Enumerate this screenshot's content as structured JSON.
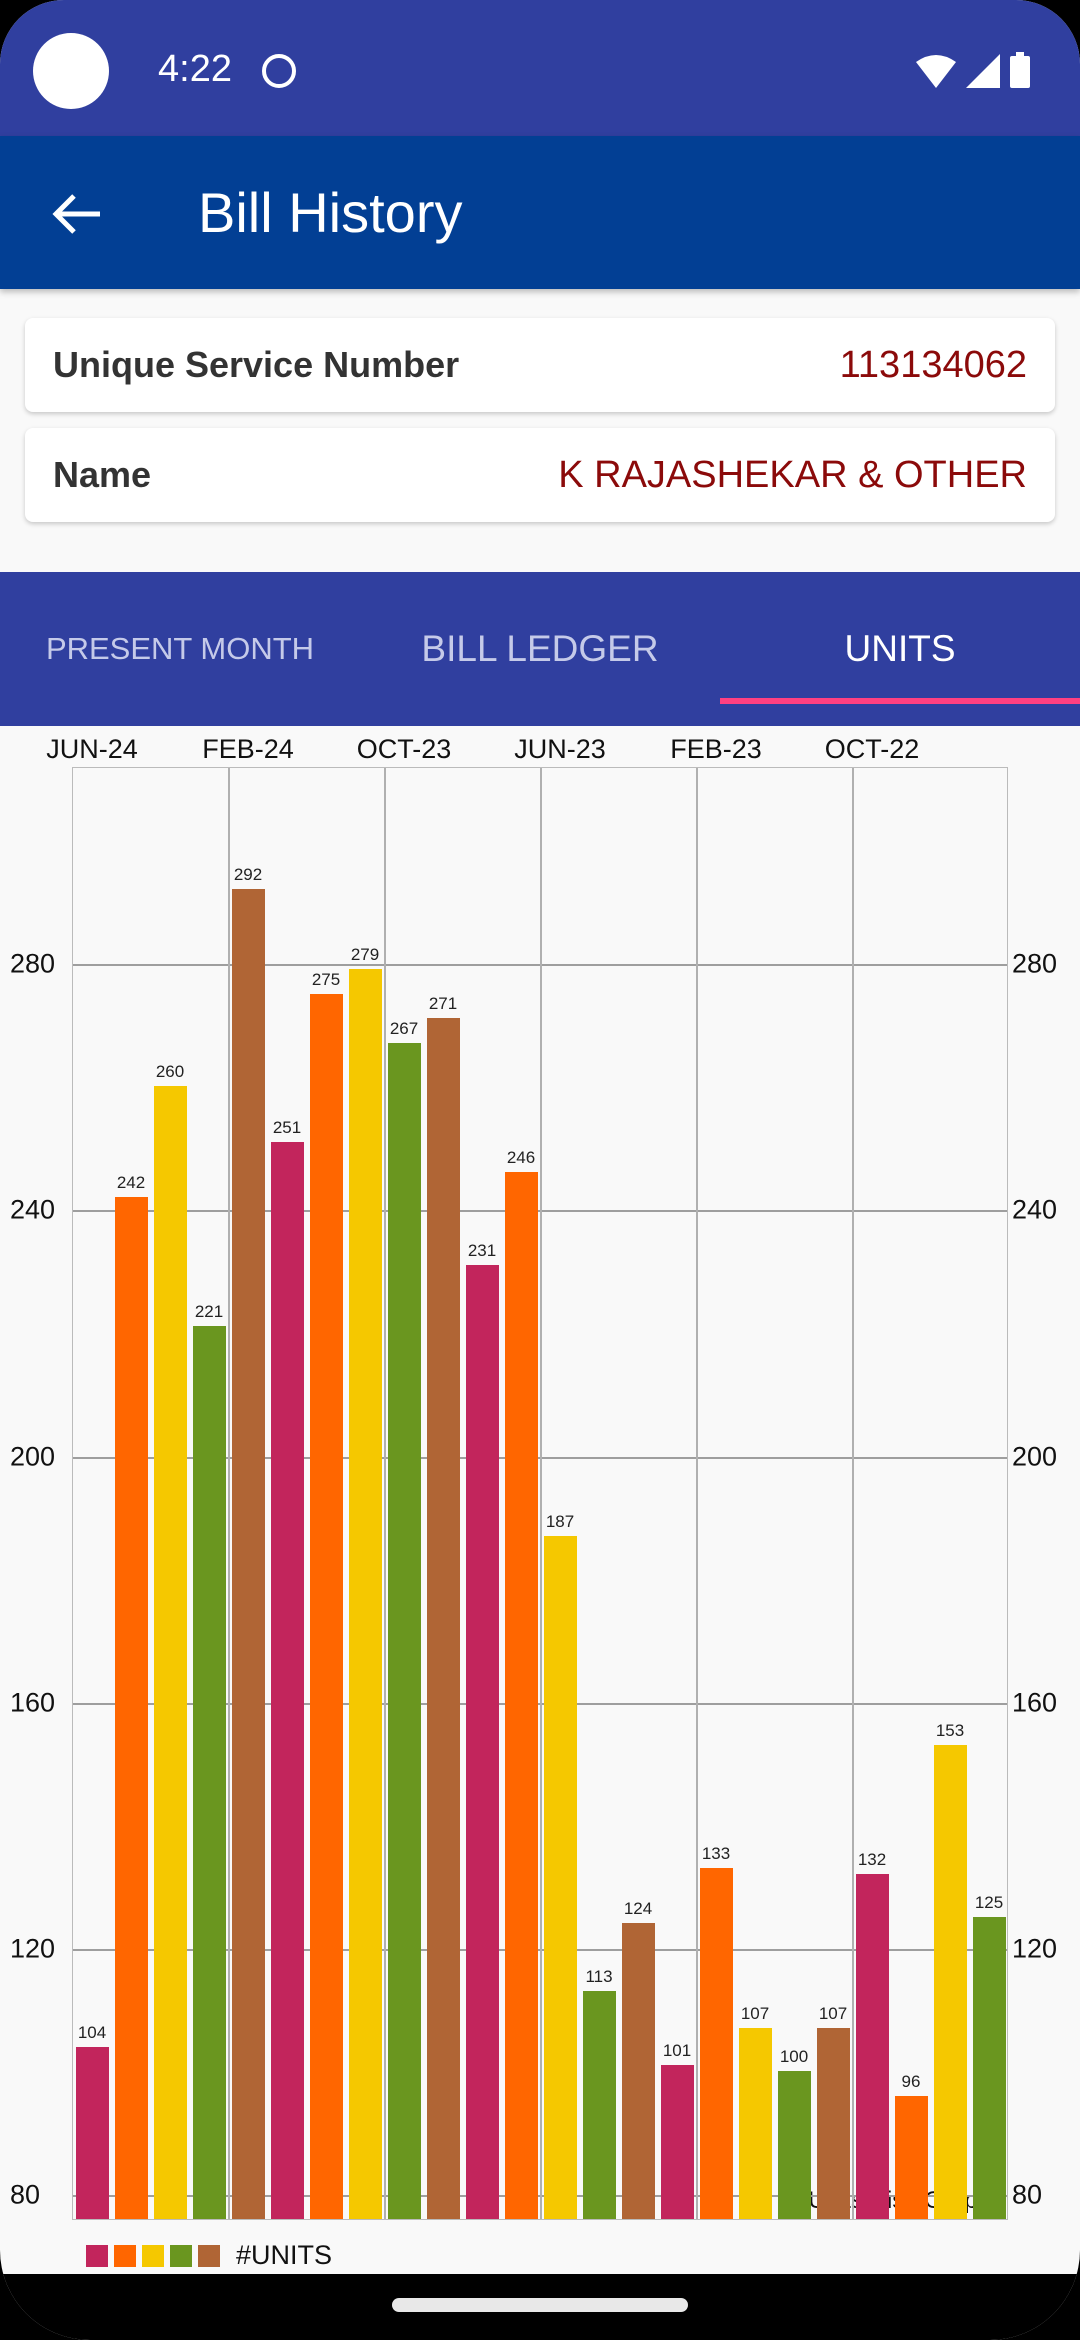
{
  "status_bar": {
    "time": "4:22"
  },
  "app_bar": {
    "title": "Bill History"
  },
  "info": {
    "service_label": "Unique Service Number",
    "service_value": "113134062",
    "name_label": "Name",
    "name_value": "K RAJASHEKAR & OTHER"
  },
  "tabs": [
    {
      "label": "PRESENT MONTH",
      "active": false
    },
    {
      "label": "BILL LEDGER",
      "active": false
    },
    {
      "label": "UNITS",
      "active": true
    }
  ],
  "colors": {
    "status_bar": "#303f9f",
    "app_bar": "#023f94",
    "tab_indicator": "#ff4081",
    "value_text": "#8b0a0a",
    "palette": [
      "#c2255c",
      "#ff6600",
      "#f5c800",
      "#6a961f",
      "#b06535"
    ]
  },
  "chart_data": {
    "type": "bar",
    "title": "Units wise Graph",
    "legend": [
      "#UNITS"
    ],
    "legend_position": "bottom-left",
    "x_tick_labels": [
      "JUN-24",
      "FEB-24",
      "OCT-23",
      "JUN-23",
      "FEB-23",
      "OCT-22"
    ],
    "y_ticks": [
      80,
      120,
      160,
      200,
      240,
      280
    ],
    "ylim": [
      76,
      312
    ],
    "grid": true,
    "series": [
      {
        "name": "#UNITS",
        "values": [
          104,
          242,
          260,
          221,
          292,
          251,
          275,
          279,
          267,
          271,
          231,
          246,
          187,
          113,
          124,
          101,
          133,
          107,
          100,
          107,
          132,
          96,
          153,
          125
        ]
      }
    ]
  }
}
